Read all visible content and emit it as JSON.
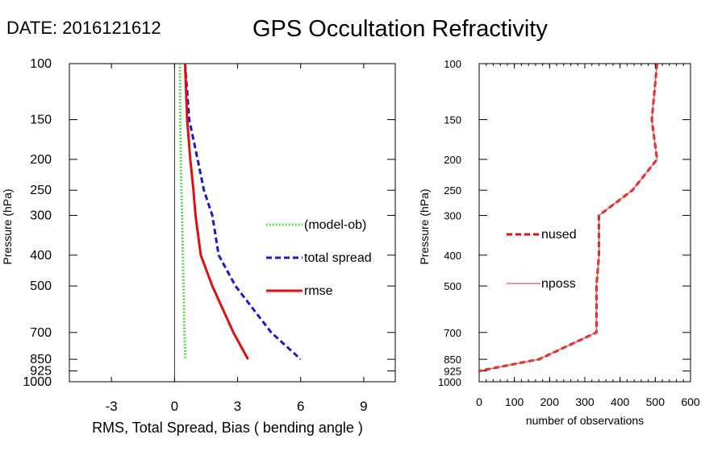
{
  "header": {
    "date_label": "DATE: 2016121612",
    "title": "GPS Occultation Refractivity"
  },
  "chart_data": [
    {
      "type": "line",
      "xlabel": "RMS, Total Spread, Bias ( bending angle )",
      "ylabel": "Pressure (hPa)",
      "xlim": [
        -5,
        10.5
      ],
      "ylim": [
        1000,
        100
      ],
      "yscale": "log",
      "xticks": [
        -3,
        0,
        3,
        6,
        9
      ],
      "yticks": [
        100,
        150,
        200,
        250,
        300,
        400,
        500,
        700,
        850,
        925,
        1000
      ],
      "zero_line": true,
      "legend_position": "right-middle",
      "series": [
        {
          "name": "(model-ob)",
          "color": "#22dd22",
          "style": "dotted",
          "x": [
            0.26,
            0.27,
            0.3,
            0.33,
            0.36,
            0.4,
            0.43,
            0.47,
            0.52
          ],
          "y": [
            100,
            150,
            200,
            250,
            300,
            400,
            500,
            700,
            850
          ]
        },
        {
          "name": "total spread",
          "color": "#1a1acc",
          "style": "dashed",
          "x": [
            0.5,
            0.7,
            1.1,
            1.4,
            1.8,
            2.1,
            2.9,
            4.6,
            6.0
          ],
          "y": [
            100,
            150,
            200,
            250,
            300,
            400,
            500,
            700,
            850
          ]
        },
        {
          "name": "rmse",
          "color": "#dd1111",
          "style": "solid",
          "x": [
            0.5,
            0.6,
            0.75,
            0.9,
            1.0,
            1.25,
            1.8,
            2.8,
            3.5
          ],
          "y": [
            100,
            150,
            200,
            250,
            300,
            400,
            500,
            700,
            850
          ]
        }
      ]
    },
    {
      "type": "line",
      "xlabel": "number of observations",
      "ylabel": "Pressure (hPa)",
      "xlim": [
        0,
        600
      ],
      "ylim": [
        1000,
        100
      ],
      "yscale": "log",
      "xticks": [
        0,
        100,
        200,
        300,
        400,
        500,
        600
      ],
      "yticks": [
        100,
        150,
        200,
        250,
        300,
        400,
        500,
        700,
        850,
        925,
        1000
      ],
      "legend_position": "left-middle",
      "series": [
        {
          "name": "nused",
          "color": "#dd1111",
          "style": "dashed",
          "x": [
            505,
            490,
            505,
            435,
            340,
            340,
            333,
            333,
            170,
            0
          ],
          "y": [
            100,
            150,
            200,
            250,
            300,
            400,
            500,
            700,
            850,
            925
          ]
        },
        {
          "name": "nposs",
          "color": "#e05050",
          "style": "solid",
          "x": [
            505,
            490,
            505,
            435,
            340,
            340,
            333,
            333,
            170,
            0
          ],
          "y": [
            100,
            150,
            200,
            250,
            300,
            400,
            500,
            700,
            850,
            925
          ]
        }
      ]
    }
  ]
}
